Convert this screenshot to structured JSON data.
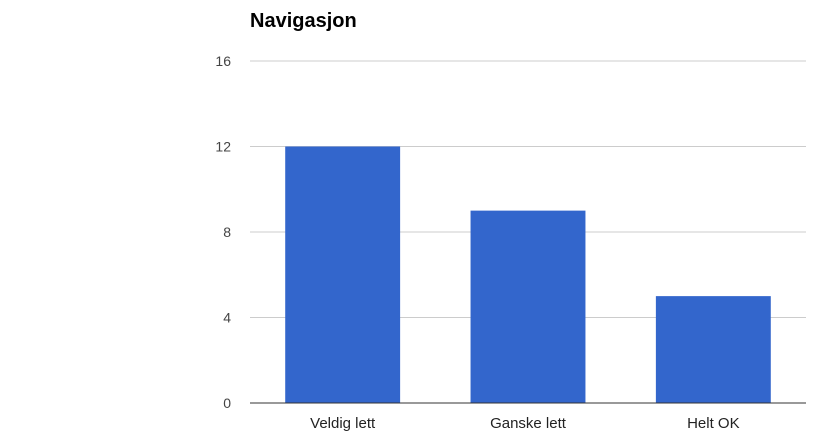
{
  "chart_data": {
    "type": "bar",
    "title": "Navigasjon",
    "categories": [
      "Veldig lett",
      "Ganske lett",
      "Helt OK"
    ],
    "values": [
      12,
      9,
      5
    ],
    "ylim": [
      0,
      16
    ],
    "yticks": [
      0,
      4,
      8,
      12,
      16
    ],
    "xlabel": "",
    "ylabel": "",
    "grid": true,
    "legend": "none",
    "bar_color": "#3366cc"
  }
}
